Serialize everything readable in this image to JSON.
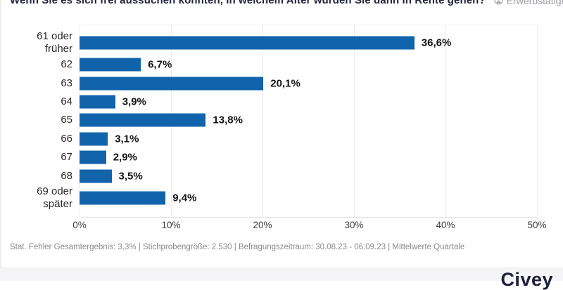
{
  "header": {
    "title": "Wenn Sie es sich frei aussuchen könnten, in welchem Alter würden Sie dann in Rente gehen?",
    "audience_tag": "Erwerbstätige",
    "audience_icon": "person-circle-icon"
  },
  "chart_data": {
    "type": "bar",
    "orientation": "horizontal",
    "title": "Wenn Sie es sich frei aussuchen könnten, in welchem Alter würden Sie dann in Rente gehen?",
    "categories": [
      "61 oder früher",
      "62",
      "63",
      "64",
      "65",
      "66",
      "67",
      "68",
      "69 oder später"
    ],
    "values": [
      36.6,
      6.7,
      20.1,
      3.9,
      13.8,
      3.1,
      2.9,
      3.5,
      9.4
    ],
    "value_labels": [
      "36,6%",
      "6,7%",
      "20,1%",
      "3,9%",
      "13,8%",
      "3,1%",
      "2,9%",
      "3,5%",
      "9,4%"
    ],
    "x_ticks": [
      "0%",
      "10%",
      "20%",
      "30%",
      "40%",
      "50%"
    ],
    "xlim": [
      0,
      50
    ],
    "xlabel": "",
    "ylabel": "",
    "grid": true,
    "legend": false,
    "bar_color": "#1164ab"
  },
  "footer": {
    "stats_line": "Stat. Fehler Gesamtergebnis: 3,3% | Stichprobengröße: 2.530 | Befragungszeitraum: 30.08.23 - 06.09.23 | Mittelwerte Quartale"
  },
  "brand": {
    "logo_text": "Civey"
  },
  "colors": {
    "bar": "#1164ab",
    "title_text": "#23233d",
    "tag_text": "#9b9ba3",
    "gridline": "#ececec",
    "footer_text": "#8a8a8a",
    "logo_text": "#20203c",
    "brand_band_bg": "#f5f5f7"
  }
}
